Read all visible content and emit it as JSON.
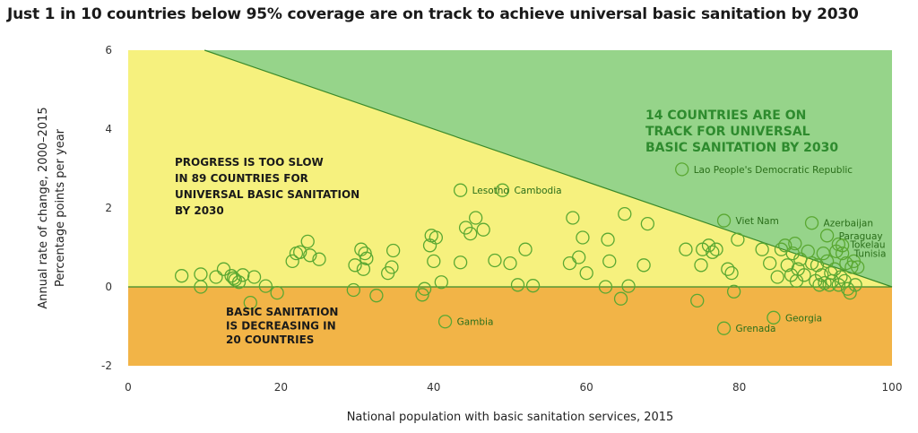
{
  "title": "Just 1 in 10 countries below 95% coverage are on track to achieve universal basic sanitation by 2030",
  "colors": {
    "slow_zone": "#f6f17e",
    "on_track_zone": "#96d48a",
    "decreasing_zone": "#f2b447",
    "marker": "#5aa832",
    "label_text": "#2a6e1a",
    "on_track_text": "#2e8b2e"
  },
  "chart_data": {
    "type": "scatter",
    "xlabel": "National population with basic sanitation services, 2015",
    "ylabel_lines": [
      "Annual rate of change, 2000–2015",
      "Percentage points per year"
    ],
    "xlim": [
      0,
      100
    ],
    "ylim": [
      -2,
      6
    ],
    "x_ticks": [
      "0",
      "20",
      "40",
      "60",
      "80",
      "100"
    ],
    "y_ticks": [
      "-2",
      "0",
      "2",
      "4",
      "6"
    ],
    "grid": false,
    "zones": {
      "on_track": [
        "14 COUNTRIES ARE ON",
        "TRACK FOR UNIVERSAL",
        "BASIC SANITATION BY 2030"
      ],
      "too_slow": [
        "PROGRESS IS TOO SLOW",
        "IN 89 COUNTRIES FOR",
        "UNIVERSAL BASIC SANITATION",
        "BY 2030"
      ],
      "decreasing": [
        "BASIC SANITATION",
        "IS DECREASING IN",
        "20 COUNTRIES"
      ]
    },
    "on_track_line": {
      "x": [
        10,
        100
      ],
      "y": [
        6,
        0
      ]
    },
    "labeled_points": [
      {
        "name": "Lesotho",
        "x": 43.5,
        "y": 2.45
      },
      {
        "name": "Cambodia",
        "x": 49.0,
        "y": 2.45
      },
      {
        "name": "Lao People's Democratic Republic",
        "x": 72.5,
        "y": 2.98
      },
      {
        "name": "Viet Nam",
        "x": 78.0,
        "y": 1.68
      },
      {
        "name": "Azerbaijan",
        "x": 89.5,
        "y": 1.62
      },
      {
        "name": "Paraguay",
        "x": 91.5,
        "y": 1.3
      },
      {
        "name": "Tokelau",
        "x": 93.0,
        "y": 1.08
      },
      {
        "name": "Tunisia",
        "x": 93.5,
        "y": 0.85
      },
      {
        "name": "Gambia",
        "x": 41.5,
        "y": -0.88
      },
      {
        "name": "Georgia",
        "x": 84.5,
        "y": -0.78
      },
      {
        "name": "Grenada",
        "x": 78.0,
        "y": -1.05
      }
    ],
    "points": [
      [
        7,
        0.28
      ],
      [
        9.5,
        0.32
      ],
      [
        9.5,
        0.0
      ],
      [
        11.5,
        0.25
      ],
      [
        12.5,
        0.45
      ],
      [
        13.5,
        0.28
      ],
      [
        13.8,
        0.22
      ],
      [
        14,
        0.18
      ],
      [
        14.5,
        0.12
      ],
      [
        15,
        0.3
      ],
      [
        16.5,
        0.25
      ],
      [
        16,
        -0.4
      ],
      [
        18,
        0.02
      ],
      [
        19.5,
        -0.15
      ],
      [
        21.5,
        0.65
      ],
      [
        22,
        0.85
      ],
      [
        22.5,
        0.88
      ],
      [
        23.5,
        1.15
      ],
      [
        23.8,
        0.8
      ],
      [
        25,
        0.7
      ],
      [
        29.5,
        -0.08
      ],
      [
        29.7,
        0.55
      ],
      [
        30.5,
        0.95
      ],
      [
        30.8,
        0.45
      ],
      [
        31,
        0.85
      ],
      [
        31.2,
        0.72
      ],
      [
        32.5,
        -0.22
      ],
      [
        34,
        0.35
      ],
      [
        34.5,
        0.5
      ],
      [
        34.7,
        0.92
      ],
      [
        38.5,
        -0.2
      ],
      [
        38.8,
        -0.05
      ],
      [
        39.5,
        1.05
      ],
      [
        39.7,
        1.3
      ],
      [
        40,
        0.65
      ],
      [
        40.3,
        1.25
      ],
      [
        41,
        0.12
      ],
      [
        43.5,
        0.62
      ],
      [
        44.2,
        1.5
      ],
      [
        44.8,
        1.35
      ],
      [
        45.5,
        1.75
      ],
      [
        46.5,
        1.45
      ],
      [
        48,
        0.67
      ],
      [
        50,
        0.6
      ],
      [
        51,
        0.05
      ],
      [
        52,
        0.95
      ],
      [
        53,
        0.03
      ],
      [
        57.8,
        0.6
      ],
      [
        58.2,
        1.75
      ],
      [
        59,
        0.75
      ],
      [
        59.5,
        1.25
      ],
      [
        60,
        0.35
      ],
      [
        62.5,
        0.0
      ],
      [
        62.8,
        1.2
      ],
      [
        63,
        0.65
      ],
      [
        64.5,
        -0.3
      ],
      [
        65,
        1.85
      ],
      [
        65.5,
        0.02
      ],
      [
        67.5,
        0.55
      ],
      [
        68,
        1.6
      ],
      [
        73,
        0.95
      ],
      [
        74.5,
        -0.35
      ],
      [
        75,
        0.55
      ],
      [
        75.2,
        0.95
      ],
      [
        76,
        1.05
      ],
      [
        76.5,
        0.88
      ],
      [
        77,
        0.95
      ],
      [
        78.5,
        0.45
      ],
      [
        79,
        0.35
      ],
      [
        79.3,
        -0.12
      ],
      [
        79.8,
        1.2
      ],
      [
        83,
        0.95
      ],
      [
        84,
        0.6
      ],
      [
        85,
        0.25
      ],
      [
        85.5,
        0.95
      ],
      [
        86,
        1.05
      ],
      [
        86.3,
        0.55
      ],
      [
        86.8,
        0.3
      ],
      [
        87,
        0.85
      ],
      [
        87.3,
        1.1
      ],
      [
        87.5,
        0.15
      ],
      [
        87.7,
        0.45
      ],
      [
        88,
        0.7
      ],
      [
        88.5,
        0.3
      ],
      [
        89,
        0.9
      ],
      [
        89.5,
        0.6
      ],
      [
        90,
        0.15
      ],
      [
        90.2,
        0.55
      ],
      [
        90.5,
        0.05
      ],
      [
        90.8,
        0.3
      ],
      [
        91,
        0.85
      ],
      [
        91.2,
        0.1
      ],
      [
        91.5,
        0.65
      ],
      [
        91.8,
        0.05
      ],
      [
        92,
        0.35
      ],
      [
        92.2,
        0.15
      ],
      [
        92.5,
        0.45
      ],
      [
        92.7,
        0.9
      ],
      [
        93,
        0.05
      ],
      [
        93.3,
        0.25
      ],
      [
        93.5,
        1.05
      ],
      [
        93.8,
        0.15
      ],
      [
        94,
        0.6
      ],
      [
        94.2,
        -0.05
      ],
      [
        94.5,
        -0.15
      ],
      [
        94.7,
        0.5
      ],
      [
        95,
        0.65
      ],
      [
        95.2,
        0.05
      ],
      [
        95.5,
        0.5
      ]
    ]
  }
}
